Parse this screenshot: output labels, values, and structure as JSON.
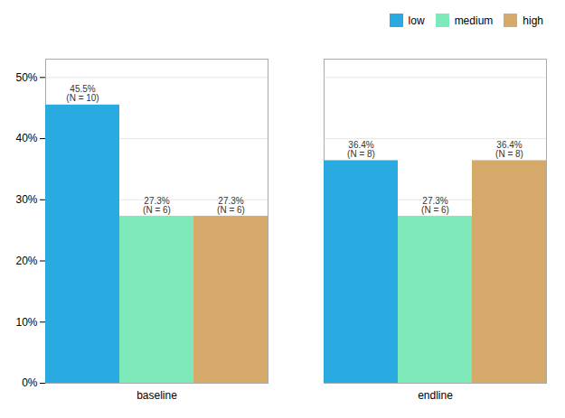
{
  "chart_data": {
    "type": "bar",
    "categories": [
      "baseline",
      "endline"
    ],
    "series": [
      {
        "name": "low",
        "color": "#29abe2",
        "values": [
          45.5,
          36.4
        ],
        "value_labels": [
          "45.5%\n(N = 10)",
          "36.4%\n(N = 8)"
        ]
      },
      {
        "name": "medium",
        "color": "#7de8b8",
        "values": [
          27.3,
          27.3
        ],
        "value_labels": [
          "27.3%\n(N = 6)",
          "27.3%\n(N = 6)"
        ]
      },
      {
        "name": "high",
        "color": "#d4a96a",
        "values": [
          27.3,
          36.4
        ],
        "value_labels": [
          "27.3%\n(N = 6)",
          "36.4%\n(N = 8)"
        ]
      }
    ],
    "ylim": [
      0,
      53
    ],
    "yticks": [
      {
        "value": 0,
        "label": "0%"
      },
      {
        "value": 10,
        "label": "10%"
      },
      {
        "value": 20,
        "label": "20%"
      },
      {
        "value": 30,
        "label": "30%"
      },
      {
        "value": 40,
        "label": "40%"
      },
      {
        "value": 50,
        "label": "50%"
      }
    ],
    "grid": true,
    "legend": "upper right",
    "data_labels": true
  }
}
